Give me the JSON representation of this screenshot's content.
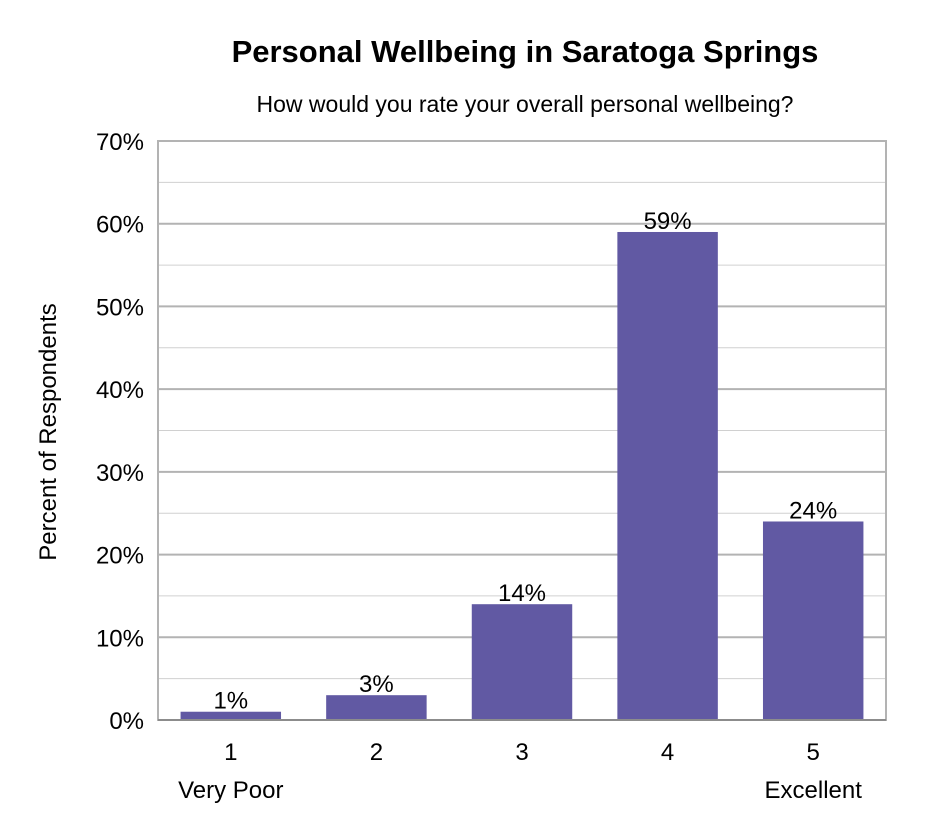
{
  "chart_data": {
    "type": "bar",
    "title": "Personal Wellbeing in Saratoga Springs",
    "subtitle": "How would you rate your overall personal wellbeing?",
    "ylabel": "Percent of Respondents",
    "xlabel": "",
    "categories": [
      "1",
      "2",
      "3",
      "4",
      "5"
    ],
    "category_sublabels": [
      "Very Poor",
      "",
      "",
      "",
      "Excellent"
    ],
    "values": [
      1,
      3,
      14,
      59,
      24
    ],
    "data_labels": [
      "1%",
      "3%",
      "14%",
      "59%",
      "24%"
    ],
    "ylim": [
      0,
      70
    ],
    "yticks": [
      0,
      10,
      20,
      30,
      40,
      50,
      60,
      70
    ],
    "ytick_labels": [
      "0%",
      "10%",
      "20%",
      "30%",
      "40%",
      "50%",
      "60%",
      "70%"
    ],
    "grid": true,
    "bar_color": "#6159a3",
    "grid_color": "#b3b3b3"
  }
}
